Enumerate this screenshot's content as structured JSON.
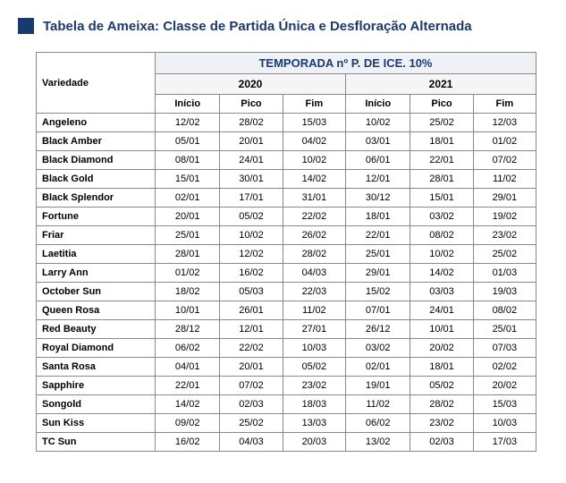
{
  "title": "Tabela de Ameixa: Classe de Partida Única e Desfloração Alternada",
  "table": {
    "super_header": "TEMPORADA nº P. DE ICE. 10%",
    "col_group_a": "2020",
    "col_group_b": "2021",
    "cols_a": [
      "Início",
      "Pico",
      "Fim"
    ],
    "cols_b": [
      "Início",
      "Pico",
      "Fim"
    ],
    "row_header": "Variedade",
    "rows": [
      {
        "label": "Angeleno",
        "a": [
          "12/02",
          "28/02",
          "15/03"
        ],
        "b": [
          "10/02",
          "25/02",
          "12/03"
        ]
      },
      {
        "label": "Black Amber",
        "a": [
          "05/01",
          "20/01",
          "04/02"
        ],
        "b": [
          "03/01",
          "18/01",
          "01/02"
        ]
      },
      {
        "label": "Black Diamond",
        "a": [
          "08/01",
          "24/01",
          "10/02"
        ],
        "b": [
          "06/01",
          "22/01",
          "07/02"
        ]
      },
      {
        "label": "Black Gold",
        "a": [
          "15/01",
          "30/01",
          "14/02"
        ],
        "b": [
          "12/01",
          "28/01",
          "11/02"
        ]
      },
      {
        "label": "Black Splendor",
        "a": [
          "02/01",
          "17/01",
          "31/01"
        ],
        "b": [
          "30/12",
          "15/01",
          "29/01"
        ]
      },
      {
        "label": "Fortune",
        "a": [
          "20/01",
          "05/02",
          "22/02"
        ],
        "b": [
          "18/01",
          "03/02",
          "19/02"
        ]
      },
      {
        "label": "Friar",
        "a": [
          "25/01",
          "10/02",
          "26/02"
        ],
        "b": [
          "22/01",
          "08/02",
          "23/02"
        ]
      },
      {
        "label": "Laetitia",
        "a": [
          "28/01",
          "12/02",
          "28/02"
        ],
        "b": [
          "25/01",
          "10/02",
          "25/02"
        ]
      },
      {
        "label": "Larry Ann",
        "a": [
          "01/02",
          "16/02",
          "04/03"
        ],
        "b": [
          "29/01",
          "14/02",
          "01/03"
        ]
      },
      {
        "label": "October Sun",
        "a": [
          "18/02",
          "05/03",
          "22/03"
        ],
        "b": [
          "15/02",
          "03/03",
          "19/03"
        ]
      },
      {
        "label": "Queen Rosa",
        "a": [
          "10/01",
          "26/01",
          "11/02"
        ],
        "b": [
          "07/01",
          "24/01",
          "08/02"
        ]
      },
      {
        "label": "Red Beauty",
        "a": [
          "28/12",
          "12/01",
          "27/01"
        ],
        "b": [
          "26/12",
          "10/01",
          "25/01"
        ]
      },
      {
        "label": "Royal Diamond",
        "a": [
          "06/02",
          "22/02",
          "10/03"
        ],
        "b": [
          "03/02",
          "20/02",
          "07/03"
        ]
      },
      {
        "label": "Santa Rosa",
        "a": [
          "04/01",
          "20/01",
          "05/02"
        ],
        "b": [
          "02/01",
          "18/01",
          "02/02"
        ]
      },
      {
        "label": "Sapphire",
        "a": [
          "22/01",
          "07/02",
          "23/02"
        ],
        "b": [
          "19/01",
          "05/02",
          "20/02"
        ]
      },
      {
        "label": "Songold",
        "a": [
          "14/02",
          "02/03",
          "18/03"
        ],
        "b": [
          "11/02",
          "28/02",
          "15/03"
        ]
      },
      {
        "label": "Sun Kiss",
        "a": [
          "09/02",
          "25/02",
          "13/03"
        ],
        "b": [
          "06/02",
          "23/02",
          "10/03"
        ]
      },
      {
        "label": "TC Sun",
        "a": [
          "16/02",
          "04/03",
          "20/03"
        ],
        "b": [
          "13/02",
          "02/03",
          "17/03"
        ]
      }
    ]
  }
}
